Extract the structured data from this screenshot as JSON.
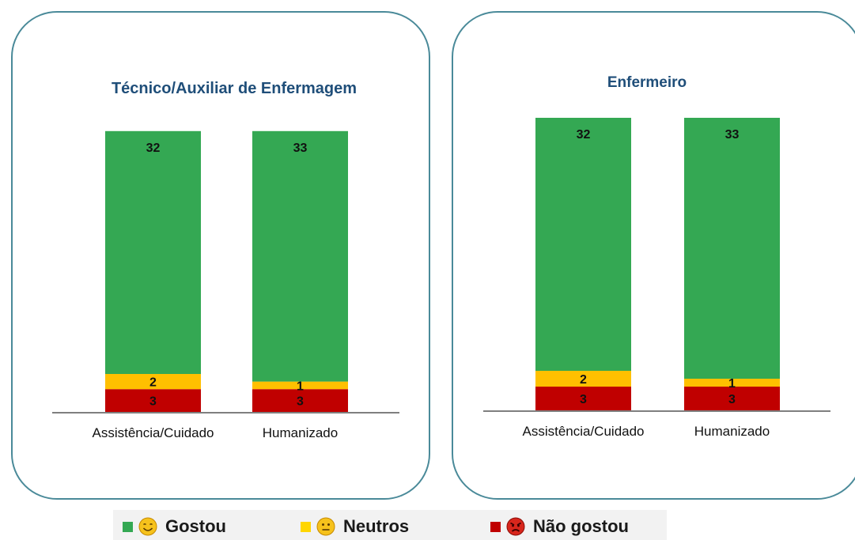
{
  "chart_data": [
    {
      "type": "bar",
      "stacked": true,
      "title": "Técnico/Auxiliar de Enfermagem",
      "categories": [
        "Assistência/Cuidado",
        "Humanizado"
      ],
      "series": [
        {
          "name": "Não gostou",
          "values": [
            3,
            3
          ],
          "color": "#c00000"
        },
        {
          "name": "Neutros",
          "values": [
            2,
            1
          ],
          "color": "#ffc000"
        },
        {
          "name": "Gostou",
          "values": [
            32,
            33
          ],
          "color": "#34a853"
        }
      ]
    },
    {
      "type": "bar",
      "stacked": true,
      "title": "Enfermeiro",
      "categories": [
        "Assistência/Cuidado",
        "Humanizado"
      ],
      "series": [
        {
          "name": "Não gostou",
          "values": [
            3,
            3
          ],
          "color": "#c00000"
        },
        {
          "name": "Neutros",
          "values": [
            2,
            1
          ],
          "color": "#ffc000"
        },
        {
          "name": "Gostou",
          "values": [
            32,
            33
          ],
          "color": "#34a853"
        }
      ]
    }
  ],
  "legend": {
    "items": [
      {
        "label": "Gostou",
        "color": "#34a853",
        "icon": "smiling-face-icon"
      },
      {
        "label": "Neutros",
        "color": "#ffd600",
        "icon": "neutral-face-icon"
      },
      {
        "label": "Não gostou",
        "color": "#c00000",
        "icon": "angry-face-icon"
      }
    ]
  }
}
